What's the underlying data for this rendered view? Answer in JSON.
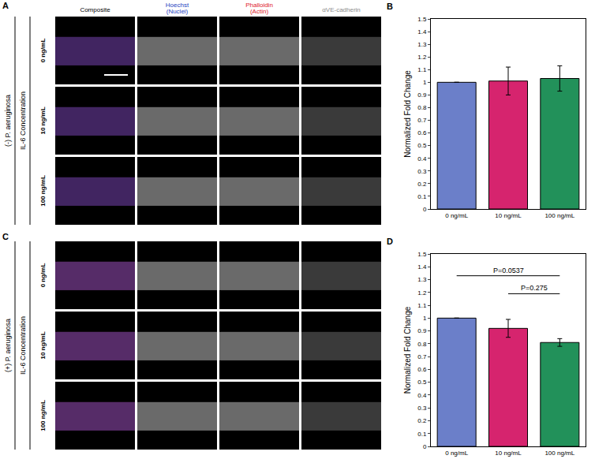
{
  "panels": [
    {
      "letter": "A",
      "condition": "(-) P. aeruginosa",
      "group_label": "IL-6 Concentration",
      "column_headers": [
        {
          "text": "Composite",
          "color": "#000000"
        },
        {
          "text": "Hoechst (Nuclei)",
          "color": "#1f3fbf"
        },
        {
          "text": "Phalloidin (Actin)",
          "color": "#e0202a"
        },
        {
          "text": "αVE-cadherin",
          "color": "#8c8c8c"
        }
      ],
      "rows": [
        "0 ng/mL",
        "10 ng/mL",
        "100 ng/mL"
      ]
    },
    {
      "letter": "C",
      "condition": "(+) P. aeruginosa",
      "group_label": "IL-6 Concentration",
      "rows": [
        "0 ng/mL",
        "10 ng/mL",
        "100 ng/mL"
      ]
    }
  ],
  "chart_data": [
    {
      "panel": "B",
      "type": "bar",
      "categories": [
        "0 ng/mL",
        "10 ng/mL",
        "100 ng/mL"
      ],
      "values": [
        1.0,
        1.01,
        1.03
      ],
      "errors": [
        null,
        0.11,
        0.1
      ],
      "colors": [
        "#6b7fc9",
        "#d6246e",
        "#22915a"
      ],
      "y_label": "Normalized Fold Change",
      "ylim": [
        0,
        1.5
      ],
      "yticks": [
        0,
        0.1,
        0.2,
        0.3,
        0.4,
        0.5,
        0.6,
        0.7,
        0.8,
        0.9,
        1,
        1.1,
        1.2,
        1.3,
        1.4,
        1.5
      ],
      "grid": false
    },
    {
      "panel": "D",
      "type": "bar",
      "categories": [
        "0 ng/mL",
        "10 ng/mL",
        "100 ng/mL"
      ],
      "values": [
        1.0,
        0.92,
        0.81
      ],
      "errors": [
        null,
        0.07,
        0.03
      ],
      "colors": [
        "#6b7fc9",
        "#d6246e",
        "#22915a"
      ],
      "y_label": "Normalized Fold Change",
      "ylim": [
        0,
        1.5
      ],
      "yticks": [
        0,
        0.1,
        0.2,
        0.3,
        0.4,
        0.5,
        0.6,
        0.7,
        0.8,
        0.9,
        1,
        1.1,
        1.2,
        1.3,
        1.4,
        1.5
      ],
      "grid": false,
      "brackets": [
        {
          "from": "0 ng/mL",
          "to": "100 ng/mL",
          "y": 1.33,
          "label": "P=0.0537"
        },
        {
          "from": "10 ng/mL",
          "to": "100 ng/mL",
          "y": 1.19,
          "label": "P=0.275"
        }
      ]
    }
  ]
}
